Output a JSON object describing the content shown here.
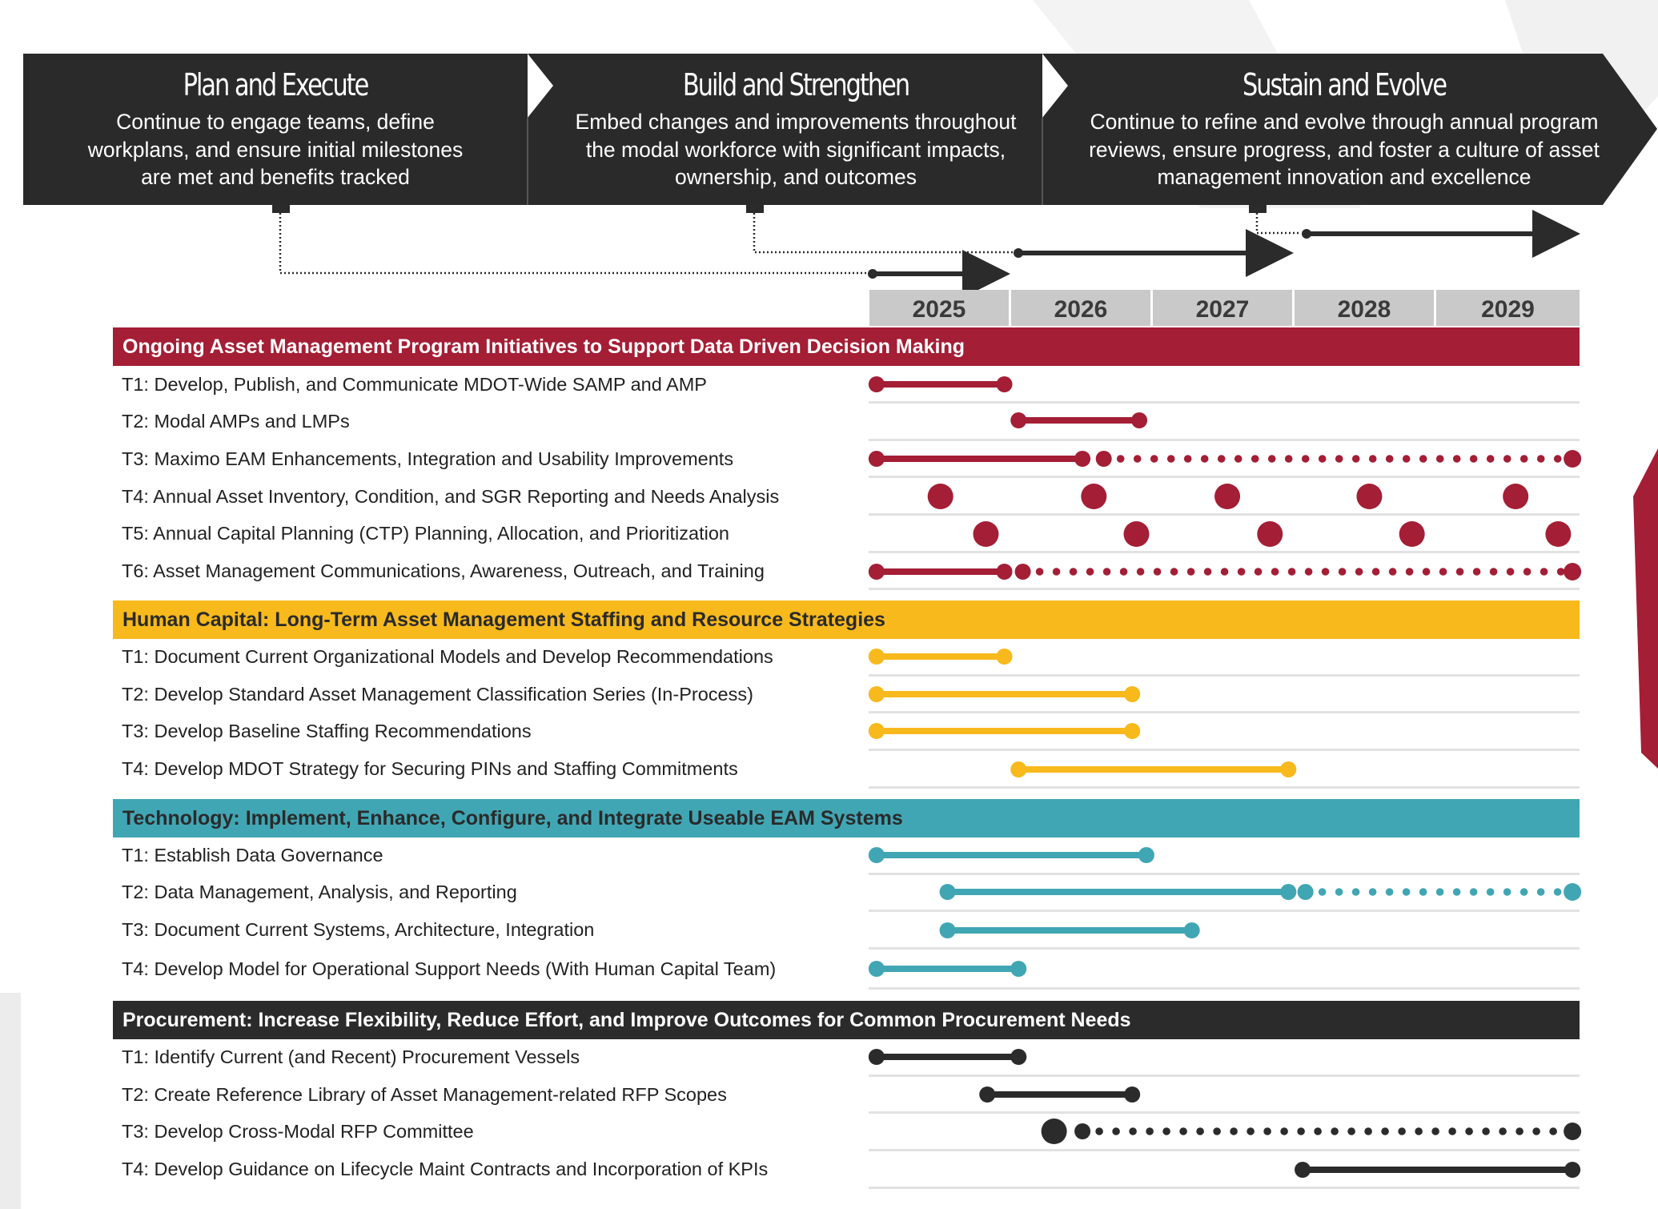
{
  "colors": {
    "maroon": "#a41e35",
    "gold": "#f7b91c",
    "teal": "#41a6b4",
    "black": "#2b2b2b",
    "banner": "#2a2a2a",
    "year_header": "#c9c9c9"
  },
  "phases": [
    {
      "title": "Plan and Execute",
      "desc_lines": [
        "Continue to engage teams, define",
        "workplans, and ensure initial milestones",
        "are met and benefits tracked"
      ]
    },
    {
      "title": "Build and Strengthen",
      "desc_lines": [
        "Embed changes and improvements throughout",
        "the modal workforce with significant impacts,",
        "ownership, and outcomes"
      ]
    },
    {
      "title": "Sustain and Evolve",
      "desc_lines": [
        "Continue to refine and evolve through annual program",
        "reviews, ensure progress, and foster a culture of asset",
        "management innovation and excellence"
      ]
    }
  ],
  "years": [
    "2025",
    "2026",
    "2027",
    "2028",
    "2029"
  ],
  "chart_data": {
    "type": "gantt",
    "time_range": [
      2025.0,
      2030.0
    ],
    "categories": [
      {
        "title": "Ongoing Asset Management Program Initiatives to Support Data Driven Decision Making",
        "color": "maroon",
        "tasks": [
          {
            "label": "T1: Develop, Publish, and Communicate MDOT-Wide SAMP and AMP",
            "solid": [
              2025.05,
              2025.95
            ]
          },
          {
            "label": "T2: Modal AMPs and LMPs",
            "solid": [
              2026.05,
              2026.9
            ]
          },
          {
            "label": "T3: Maximo EAM Enhancements, Integration and Usability Improvements",
            "solid": [
              2025.05,
              2026.5
            ],
            "dotted": [
              2026.65,
              2029.95
            ]
          },
          {
            "label": "T4: Annual Asset Inventory, Condition, and SGR Reporting and Needs Analysis",
            "milestones": [
              2025.5,
              2026.58,
              2027.52,
              2028.52,
              2029.55
            ]
          },
          {
            "label": "T5: Annual Capital Planning (CTP) Planning, Allocation, and Prioritization",
            "milestones": [
              2025.82,
              2026.88,
              2027.82,
              2028.82,
              2029.85
            ]
          },
          {
            "label": "T6: Asset Management Communications, Awareness, Outreach, and Training",
            "solid": [
              2025.05,
              2025.95
            ],
            "dotted": [
              2026.08,
              2029.95
            ]
          }
        ]
      },
      {
        "title": "Human Capital: Long-Term Asset Management Staffing and Resource Strategies",
        "color": "gold",
        "tasks": [
          {
            "label": "T1: Document Current Organizational Models and Develop Recommendations",
            "solid": [
              2025.05,
              2025.95
            ]
          },
          {
            "label": "T2: Develop Standard Asset Management Classification Series (In-Process)",
            "solid": [
              2025.05,
              2026.85
            ]
          },
          {
            "label": "T3: Develop Baseline Staffing Recommendations",
            "solid": [
              2025.05,
              2026.85
            ]
          },
          {
            "label": "T4: Develop MDOT Strategy for Securing PINs and Staffing Commitments",
            "solid": [
              2026.05,
              2027.95
            ]
          }
        ]
      },
      {
        "title": "Technology: Implement, Enhance, Configure, and Integrate Useable EAM Systems",
        "color": "teal",
        "tasks": [
          {
            "label": "T1: Establish Data Governance",
            "solid": [
              2025.05,
              2026.95
            ]
          },
          {
            "label": "T2: Data Management, Analysis, and Reporting",
            "solid": [
              2025.55,
              2027.95
            ],
            "dotted": [
              2028.07,
              2029.95
            ]
          },
          {
            "label": "T3:  Document Current Systems, Architecture, Integration",
            "solid": [
              2025.55,
              2027.27
            ]
          },
          {
            "label": "T4: Develop Model for Operational Support Needs (With Human Capital Team)",
            "solid": [
              2025.05,
              2026.05
            ]
          }
        ]
      },
      {
        "title": "Procurement: Increase Flexibility, Reduce Effort, and Improve Outcomes for Common Procurement Needs",
        "color": "black",
        "tasks": [
          {
            "label": "T1: Identify Current (and Recent) Procurement Vessels",
            "solid": [
              2025.05,
              2026.05
            ]
          },
          {
            "label": "T2: Create Reference Library of Asset Management-related RFP Scopes",
            "solid": [
              2025.83,
              2026.85
            ]
          },
          {
            "label": "T3: Develop Cross-Modal RFP Committee",
            "milestones": [
              2026.3
            ],
            "dotted": [
              2026.5,
              2029.95
            ]
          },
          {
            "label": "T4: Develop Guidance on Lifecycle Maint Contracts and Incorporation of KPIs",
            "solid": [
              2028.05,
              2029.95
            ]
          }
        ]
      }
    ]
  }
}
